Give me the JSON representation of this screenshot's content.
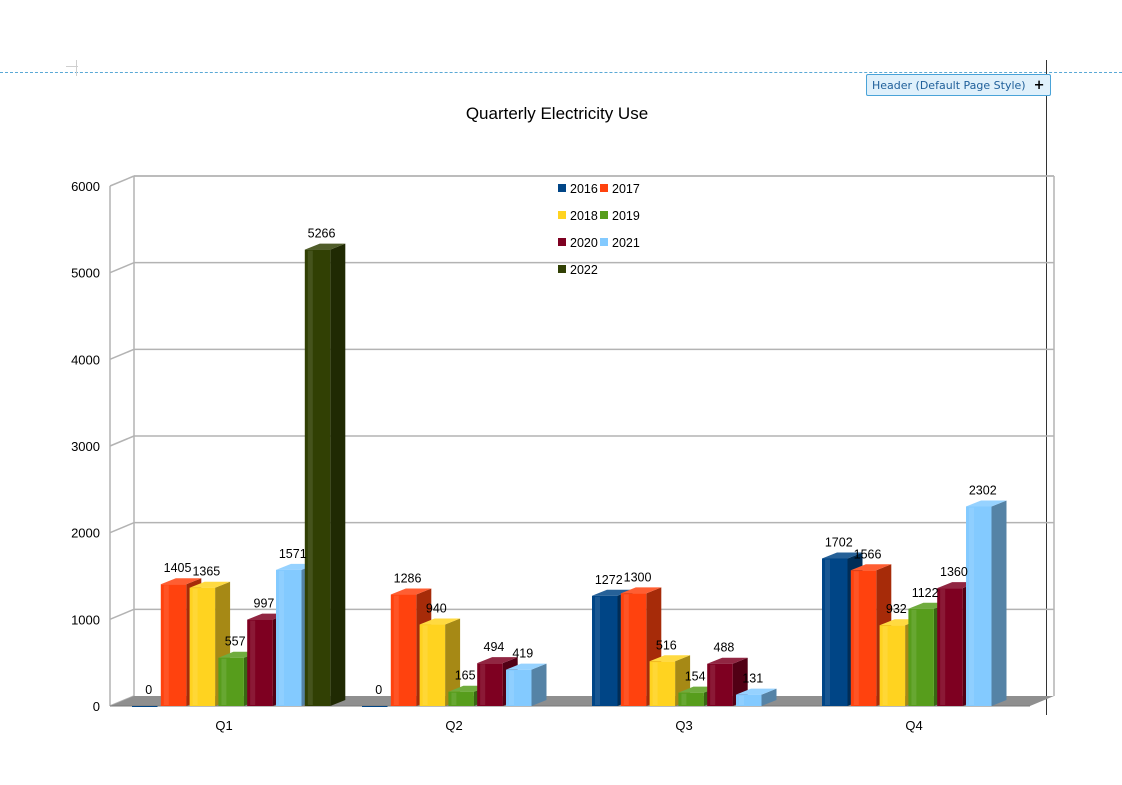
{
  "header_button": {
    "label": "Header (Default Page Style)",
    "plus": "+"
  },
  "chart_data": {
    "type": "bar",
    "style": "3d-clustered",
    "title": "Quarterly Electricity Use",
    "xlabel": "",
    "ylabel": "",
    "categories": [
      "Q1",
      "Q2",
      "Q3",
      "Q4"
    ],
    "ylim": [
      0,
      6000
    ],
    "yticks": [
      0,
      1000,
      2000,
      3000,
      4000,
      5000,
      6000
    ],
    "grid": true,
    "legend_position": "top-center",
    "series": [
      {
        "name": "2016",
        "color": "#004586",
        "values": [
          0,
          0,
          1272,
          1702
        ]
      },
      {
        "name": "2017",
        "color": "#ff420e",
        "values": [
          1405,
          1286,
          1300,
          1566
        ]
      },
      {
        "name": "2018",
        "color": "#ffd320",
        "values": [
          1365,
          940,
          516,
          932
        ]
      },
      {
        "name": "2019",
        "color": "#579d1c",
        "values": [
          557,
          165,
          154,
          1122
        ]
      },
      {
        "name": "2020",
        "color": "#7e0021",
        "values": [
          997,
          494,
          488,
          1360
        ]
      },
      {
        "name": "2021",
        "color": "#83caff",
        "values": [
          1571,
          419,
          131,
          2302
        ]
      },
      {
        "name": "2022",
        "color": "#314004",
        "values": [
          5266,
          null,
          null,
          null
        ]
      }
    ]
  }
}
